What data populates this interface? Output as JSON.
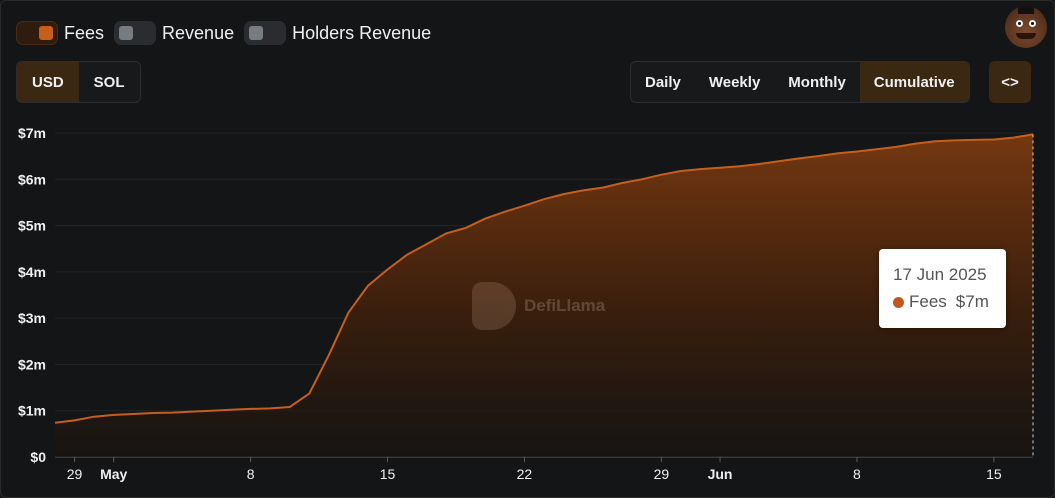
{
  "legend": {
    "items": [
      {
        "label": "Fees",
        "active": true,
        "color": "#c65f1c"
      },
      {
        "label": "Revenue",
        "active": false,
        "color": "#777c80"
      },
      {
        "label": "Holders Revenue",
        "active": false,
        "color": "#777c80"
      }
    ]
  },
  "currency": {
    "options": [
      "USD",
      "SOL"
    ],
    "selected": "USD"
  },
  "period": {
    "options": [
      "Daily",
      "Weekly",
      "Monthly",
      "Cumulative"
    ],
    "selected": "Cumulative"
  },
  "embed_label": "<>",
  "logo_icon": "protocol-logo",
  "watermark": {
    "text": "DefiLlama"
  },
  "tooltip": {
    "date": "17 Jun 2025",
    "series": "Fees",
    "value": "$7m"
  },
  "chart_data": {
    "type": "area",
    "series": [
      {
        "name": "Fees",
        "color": "#c65f1c"
      }
    ],
    "x": [
      "2025-04-28",
      "2025-04-29",
      "2025-04-30",
      "2025-05-01",
      "2025-05-02",
      "2025-05-03",
      "2025-05-04",
      "2025-05-05",
      "2025-05-06",
      "2025-05-07",
      "2025-05-08",
      "2025-05-09",
      "2025-05-10",
      "2025-05-11",
      "2025-05-12",
      "2025-05-13",
      "2025-05-14",
      "2025-05-15",
      "2025-05-16",
      "2025-05-17",
      "2025-05-18",
      "2025-05-19",
      "2025-05-20",
      "2025-05-21",
      "2025-05-22",
      "2025-05-23",
      "2025-05-24",
      "2025-05-25",
      "2025-05-26",
      "2025-05-27",
      "2025-05-28",
      "2025-05-29",
      "2025-05-30",
      "2025-05-31",
      "2025-06-01",
      "2025-06-02",
      "2025-06-03",
      "2025-06-04",
      "2025-06-05",
      "2025-06-06",
      "2025-06-07",
      "2025-06-08",
      "2025-06-09",
      "2025-06-10",
      "2025-06-11",
      "2025-06-12",
      "2025-06-13",
      "2025-06-14",
      "2025-06-15",
      "2025-06-16",
      "2025-06-17"
    ],
    "y": [
      0.74,
      0.79,
      0.87,
      0.91,
      0.93,
      0.95,
      0.96,
      0.98,
      1.0,
      1.02,
      1.04,
      1.05,
      1.08,
      1.37,
      2.2,
      3.12,
      3.7,
      4.05,
      4.37,
      4.6,
      4.83,
      4.95,
      5.15,
      5.3,
      5.43,
      5.57,
      5.68,
      5.76,
      5.82,
      5.92,
      6.0,
      6.1,
      6.18,
      6.22,
      6.25,
      6.28,
      6.33,
      6.39,
      6.45,
      6.5,
      6.56,
      6.6,
      6.65,
      6.7,
      6.77,
      6.82,
      6.84,
      6.85,
      6.86,
      6.9,
      6.97
    ],
    "y_unit": "USD millions",
    "ylim": [
      0,
      7
    ],
    "yticks": [
      "$0",
      "$1m",
      "$2m",
      "$3m",
      "$4m",
      "$5m",
      "$6m",
      "$7m"
    ],
    "xticks": [
      {
        "date": "2025-04-29",
        "label": "29",
        "bold": false
      },
      {
        "date": "2025-05-01",
        "label": "May",
        "bold": true
      },
      {
        "date": "2025-05-08",
        "label": "8",
        "bold": false
      },
      {
        "date": "2025-05-15",
        "label": "15",
        "bold": false
      },
      {
        "date": "2025-05-22",
        "label": "22",
        "bold": false
      },
      {
        "date": "2025-05-29",
        "label": "29",
        "bold": false
      },
      {
        "date": "2025-06-01",
        "label": "Jun",
        "bold": true
      },
      {
        "date": "2025-06-08",
        "label": "8",
        "bold": false
      },
      {
        "date": "2025-06-15",
        "label": "15",
        "bold": false
      }
    ],
    "grid": true
  }
}
